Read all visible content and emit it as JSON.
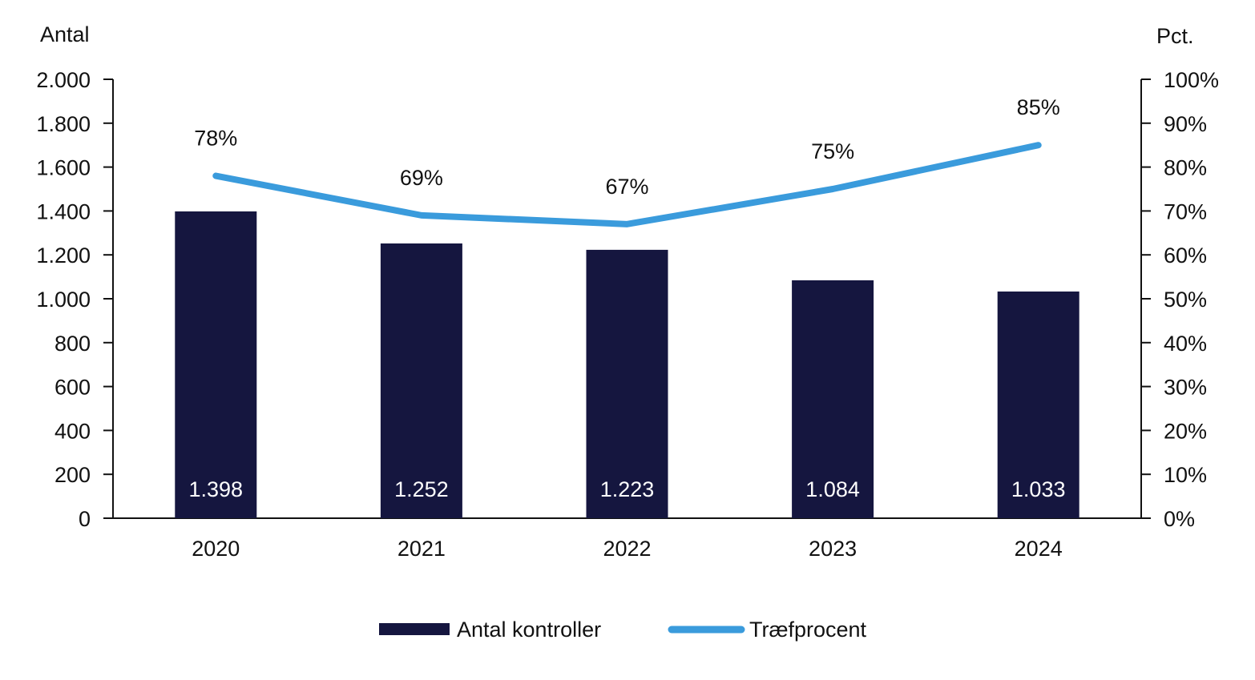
{
  "chart_data": {
    "type": "bar",
    "categories": [
      "2020",
      "2021",
      "2022",
      "2023",
      "2024"
    ],
    "left_axis": {
      "label": "Antal",
      "ylim": [
        0,
        2000
      ],
      "ticks": [
        0,
        200,
        400,
        600,
        800,
        1000,
        1200,
        1400,
        1600,
        1800,
        2000
      ],
      "tick_labels": [
        "0",
        "200",
        "400",
        "600",
        "800",
        "1.000",
        "1.200",
        "1.400",
        "1.600",
        "1.800",
        "2.000"
      ]
    },
    "right_axis": {
      "label": "Pct.",
      "ylim": [
        0,
        100
      ],
      "ticks": [
        0,
        10,
        20,
        30,
        40,
        50,
        60,
        70,
        80,
        90,
        100
      ],
      "tick_labels": [
        "0%",
        "10%",
        "20%",
        "30%",
        "40%",
        "50%",
        "60%",
        "70%",
        "80%",
        "90%",
        "100%"
      ]
    },
    "series": [
      {
        "name": "Antal kontroller",
        "type": "bar",
        "axis": "left",
        "values": [
          1398,
          1252,
          1223,
          1084,
          1033
        ],
        "data_labels": [
          "1.398",
          "1.252",
          "1.223",
          "1.084",
          "1.033"
        ],
        "color": "#15163f"
      },
      {
        "name": "Træfprocent",
        "type": "line",
        "axis": "right",
        "values": [
          78,
          69,
          67,
          75,
          85
        ],
        "data_labels": [
          "78%",
          "69%",
          "67%",
          "75%",
          "85%"
        ],
        "color": "#3a9bdc"
      }
    ],
    "grid": false,
    "legend_position": "bottom"
  }
}
